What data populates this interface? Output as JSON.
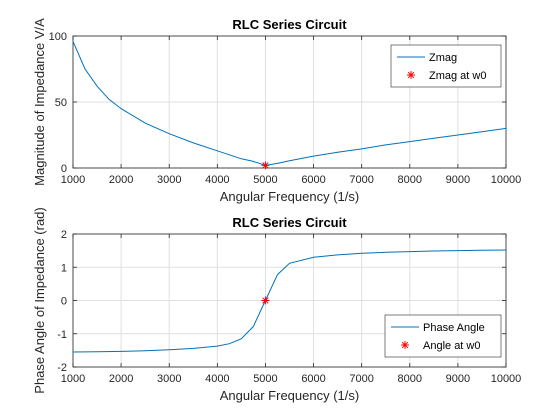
{
  "chart_data": [
    {
      "type": "line",
      "title": "RLC Series Circuit",
      "xlabel": "Angular Frequency (1/s)",
      "ylabel": "Magnitude of Impedance V/A",
      "xlim": [
        1000,
        10000
      ],
      "ylim": [
        0,
        100
      ],
      "xticks": [
        1000,
        2000,
        3000,
        4000,
        5000,
        6000,
        7000,
        8000,
        9000,
        10000
      ],
      "yticks": [
        0,
        50,
        100
      ],
      "grid": true,
      "legend_position": "top-right",
      "series": [
        {
          "name": "Zmag",
          "color": "#0072bd",
          "x": [
            1000,
            1250,
            1500,
            1750,
            2000,
            2500,
            3000,
            3500,
            4000,
            4500,
            4750,
            5000,
            5250,
            5500,
            6000,
            6500,
            7000,
            7500,
            8000,
            8500,
            9000,
            9500,
            10000
          ],
          "y": [
            96,
            75,
            62,
            52,
            45,
            34,
            26,
            19,
            13,
            7,
            5,
            2,
            3.5,
            5.5,
            9,
            12,
            14.5,
            17.5,
            20,
            22.5,
            25,
            27.5,
            30
          ]
        },
        {
          "name": "Zmag at w0",
          "color": "#ff0000",
          "marker": "asterisk",
          "x": [
            5000
          ],
          "y": [
            2
          ]
        }
      ]
    },
    {
      "type": "line",
      "title": "RLC Series Circuit",
      "xlabel": "Angular Frequency (1/s)",
      "ylabel": "Phase Angle of Impedance (rad)",
      "xlim": [
        1000,
        10000
      ],
      "ylim": [
        -2,
        2
      ],
      "xticks": [
        1000,
        2000,
        3000,
        4000,
        5000,
        6000,
        7000,
        8000,
        9000,
        10000
      ],
      "yticks": [
        -2,
        -1,
        0,
        1,
        2
      ],
      "grid": true,
      "legend_position": "bottom-right",
      "series": [
        {
          "name": "Phase Angle",
          "color": "#0072bd",
          "x": [
            1000,
            1500,
            2000,
            2500,
            3000,
            3500,
            4000,
            4250,
            4500,
            4750,
            5000,
            5250,
            5500,
            6000,
            6500,
            7000,
            7500,
            8000,
            8500,
            9000,
            9500,
            10000
          ],
          "y": [
            -1.55,
            -1.54,
            -1.53,
            -1.51,
            -1.48,
            -1.44,
            -1.37,
            -1.3,
            -1.15,
            -0.78,
            0,
            0.78,
            1.12,
            1.3,
            1.37,
            1.42,
            1.45,
            1.47,
            1.49,
            1.5,
            1.51,
            1.52
          ]
        },
        {
          "name": "Angle at w0",
          "color": "#ff0000",
          "marker": "asterisk",
          "x": [
            5000
          ],
          "y": [
            0
          ]
        }
      ]
    }
  ]
}
